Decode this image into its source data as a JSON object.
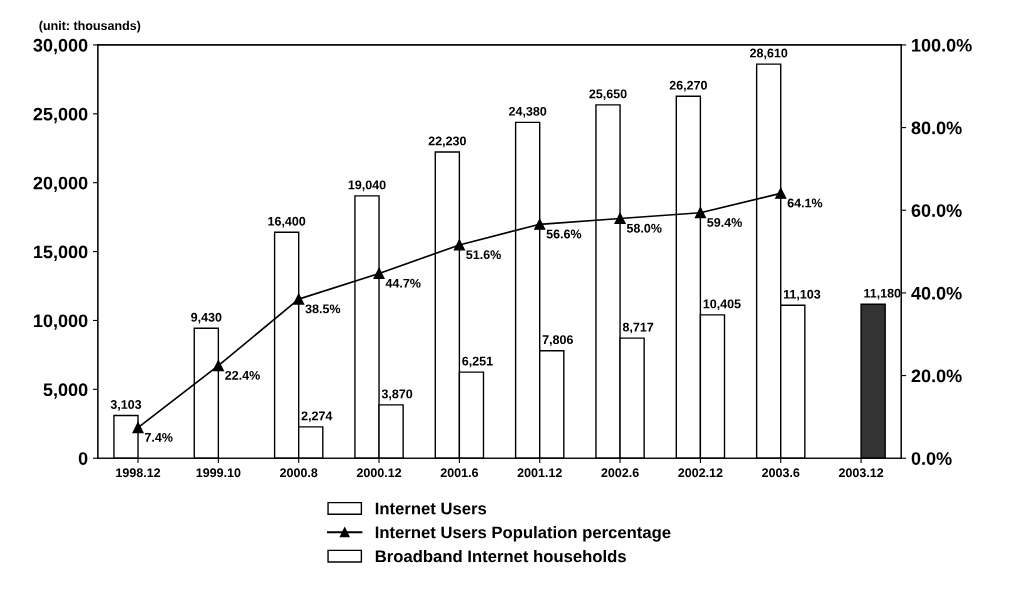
{
  "chart_data": {
    "type": "bar",
    "ylabel": "(unit: thousands)",
    "categories": [
      "1998.12",
      "1999.10",
      "2000.8",
      "2000.12",
      "2001.6",
      "2001.12",
      "2002.6",
      "2002.12",
      "2003.6",
      "2003.12"
    ],
    "series": [
      {
        "name": "Internet Users",
        "color": "#ffffff",
        "values": [
          3103,
          9430,
          16400,
          19040,
          22230,
          24380,
          25650,
          26270,
          28610,
          null
        ],
        "value_labels": [
          "3,103",
          "9,430",
          "16,400",
          "19,040",
          "22,230",
          "24,380",
          "25,650",
          "26,270",
          "28,610",
          null
        ]
      },
      {
        "name": "Internet Users Population percentage",
        "type": "line",
        "axis": "y2",
        "color": "#000000",
        "marker": "triangle",
        "line_style": "solid",
        "values": [
          7.4,
          22.4,
          38.5,
          44.7,
          51.6,
          56.6,
          58.0,
          59.4,
          64.1,
          null
        ],
        "value_labels": [
          "7.4%",
          "22.4%",
          "38.5%",
          "44.7%",
          "51.6%",
          "56.6%",
          "58.0%",
          "59.4%",
          "64.1%",
          null
        ]
      },
      {
        "name": "Broadband Internet households",
        "color": "#ffffff",
        "colors": [
          "#ffffff",
          "#ffffff",
          "#ffffff",
          "#ffffff",
          "#ffffff",
          "#ffffff",
          "#ffffff",
          "#ffffff",
          "#ffffff",
          "#333333"
        ],
        "values": [
          null,
          null,
          2274,
          3870,
          6251,
          7806,
          8717,
          10405,
          11103,
          11180
        ],
        "value_labels": [
          null,
          null,
          "2,274",
          "3,870",
          "6,251",
          "7,806",
          "8,717",
          "10,405",
          "11,103",
          "11,180"
        ]
      }
    ],
    "ylim": [
      0,
      30000
    ],
    "yticks": [
      {
        "value": 0,
        "label": "0"
      },
      {
        "value": 5000,
        "label": "5,000"
      },
      {
        "value": 10000,
        "label": "10,000"
      },
      {
        "value": 15000,
        "label": "15,000"
      },
      {
        "value": 20000,
        "label": "20,000"
      },
      {
        "value": 25000,
        "label": "25,000"
      },
      {
        "value": 30000,
        "label": "30,000"
      }
    ],
    "y2lim": [
      0,
      100
    ],
    "y2ticks": [
      {
        "value": 0,
        "label": "0.0%"
      },
      {
        "value": 20,
        "label": "20.0%"
      },
      {
        "value": 40,
        "label": "40.0%"
      },
      {
        "value": 60,
        "label": "60.0%"
      },
      {
        "value": 80,
        "label": "80.0%"
      },
      {
        "value": 100,
        "label": "100.0%"
      }
    ],
    "grid": false,
    "legend": "bottom"
  }
}
